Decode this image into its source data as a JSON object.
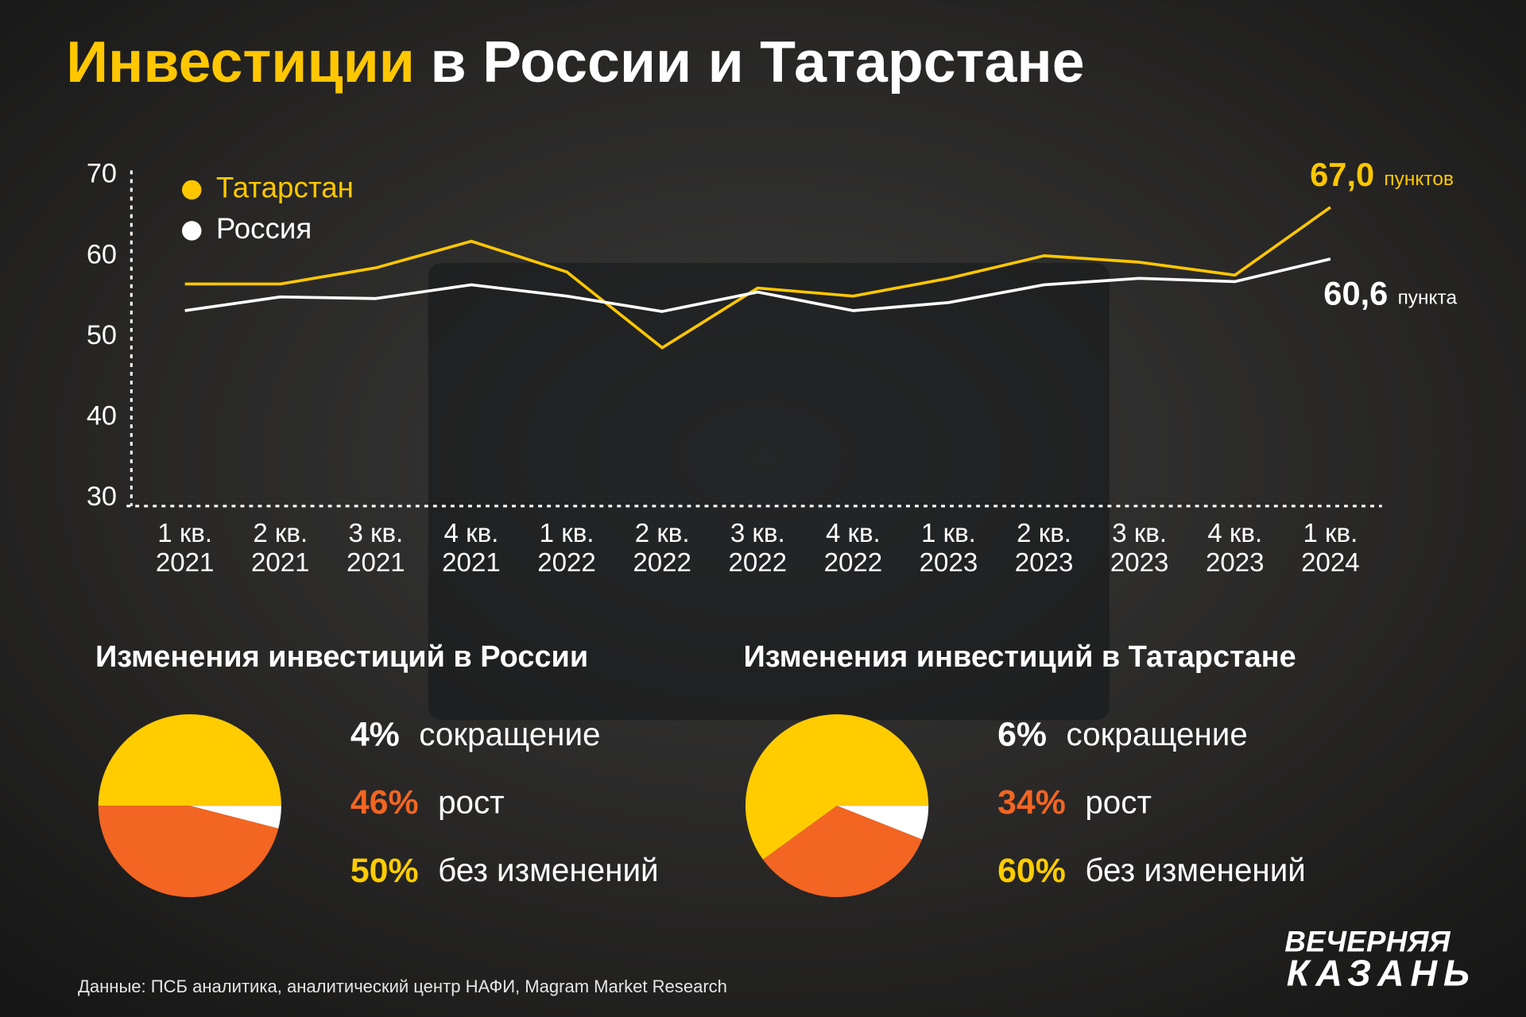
{
  "header": {
    "title_accent": "Инвестиции",
    "title_rest": "в России и Татарстане"
  },
  "chart_data": [
    {
      "type": "line",
      "categories": [
        "1 кв. 2021",
        "2 кв. 2021",
        "3 кв. 2021",
        "4 кв. 2021",
        "1 кв. 2022",
        "2 кв. 2022",
        "3 кв. 2022",
        "4 кв. 2022",
        "1 кв. 2023",
        "2 кв. 2023",
        "3 кв. 2023",
        "4 кв. 2023",
        "1 кв. 2024"
      ],
      "series": [
        {
          "name": "Татарстан",
          "color": "#ffc700",
          "values": [
            57.5,
            57.5,
            59.5,
            62.8,
            59,
            49.6,
            57,
            56,
            58.2,
            61,
            60.2,
            58.6,
            67.0
          ],
          "value_labels": [
            null,
            null,
            null,
            null,
            null,
            null,
            null,
            null,
            null,
            null,
            null,
            null,
            "67,0"
          ],
          "value_unit": "пунктов"
        },
        {
          "name": "Россия",
          "color": "#ffffff",
          "values": [
            54.2,
            55.9,
            55.7,
            57.4,
            56,
            54.1,
            56.5,
            54.2,
            55.2,
            57.4,
            58.2,
            57.8,
            60.6
          ],
          "value_labels": [
            null,
            null,
            null,
            null,
            null,
            null,
            null,
            null,
            null,
            null,
            null,
            null,
            "60,6"
          ],
          "value_unit": "пункта"
        }
      ],
      "ylim": [
        30,
        70
      ],
      "yticks": [
        30,
        40,
        50,
        60,
        70
      ]
    },
    {
      "type": "pie",
      "title": "Изменения инвестиций в России",
      "categories": [
        "сокращение",
        "рост",
        "без изменений"
      ],
      "values": [
        4,
        46,
        50
      ],
      "value_labels": [
        "4%",
        "46%",
        "50%"
      ],
      "colors": [
        "#ffffff",
        "#f26522",
        "#ffcc00"
      ]
    },
    {
      "type": "pie",
      "title": "Изменения инвестиций в Татарстане",
      "categories": [
        "сокращение",
        "рост",
        "без изменений"
      ],
      "values": [
        6,
        34,
        60
      ],
      "value_labels": [
        "6%",
        "34%",
        "60%"
      ],
      "colors": [
        "#ffffff",
        "#f26522",
        "#ffcc00"
      ]
    }
  ],
  "source": "Данные: ПСБ аналитика, аналитический центр НАФИ, Magram Market Research",
  "logo": [
    "ВЕЧЕРНЯЯ",
    "КАЗАНЬ"
  ]
}
